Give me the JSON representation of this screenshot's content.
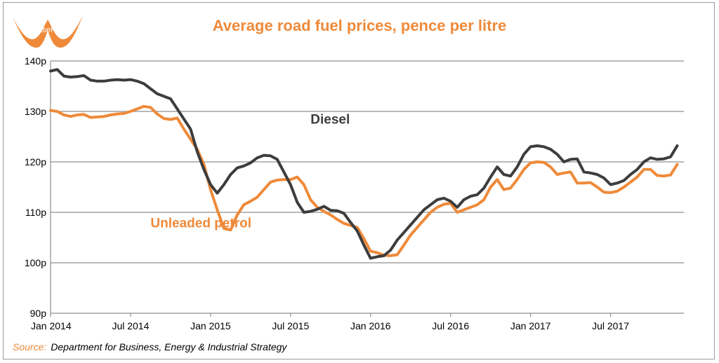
{
  "brand": {
    "logo_text": "LeasePlan",
    "color": "#ee8a3a"
  },
  "source_label": "Source:",
  "source_text": "Department for Business, Energy & Industrial Strategy",
  "chart_data": {
    "type": "line",
    "title": "Average road fuel prices, pence per litre",
    "xlabel": "",
    "ylabel": "",
    "y_unit_suffix": "p",
    "ylim": [
      90,
      140
    ],
    "yticks": [
      90,
      100,
      110,
      120,
      130,
      140
    ],
    "ytick_labels": [
      "90p",
      "100p",
      "110p",
      "120p",
      "130p",
      "140p"
    ],
    "xlim": [
      0,
      47.5
    ],
    "xticks": [
      0,
      6,
      12,
      18,
      24,
      30,
      36,
      42
    ],
    "xtick_labels": [
      "Jan 2014",
      "Jul 2014",
      "Jan 2015",
      "Jul 2015",
      "Jan 2016",
      "Jul 2016",
      "Jan 2017",
      "Jul 2017"
    ],
    "x_unit": "months since Jan 2014",
    "grid": "horizontal",
    "legend": "inline labels",
    "series": [
      {
        "name": "Diesel",
        "color": "#3d3d3d",
        "x": [
          0,
          0.5,
          1,
          1.5,
          2,
          2.5,
          3,
          3.5,
          4,
          4.5,
          5,
          5.5,
          6,
          6.5,
          7,
          7.5,
          8,
          8.5,
          9,
          9.5,
          10,
          10.5,
          11,
          11.5,
          12,
          12.5,
          13,
          13.5,
          14,
          14.5,
          15,
          15.5,
          16,
          16.5,
          17,
          17.5,
          18,
          18.5,
          19,
          19.5,
          20,
          20.5,
          21,
          21.5,
          22,
          22.5,
          23,
          23.5,
          24,
          24.5,
          25,
          25.5,
          26,
          26.5,
          27,
          27.5,
          28,
          28.5,
          29,
          29.5,
          30,
          30.5,
          31,
          31.5,
          32,
          32.5,
          33,
          33.5,
          34,
          34.5,
          35,
          35.5,
          36,
          36.5,
          37,
          37.5,
          38,
          38.5,
          39,
          39.5,
          40,
          40.5,
          41,
          41.5,
          42,
          42.5,
          43,
          43.5,
          44,
          44.5,
          45,
          45.5,
          46,
          46.5,
          47
        ],
        "values": [
          138.0,
          138.3,
          137.0,
          136.8,
          136.9,
          137.1,
          136.2,
          136.0,
          136.0,
          136.2,
          136.3,
          136.2,
          136.3,
          136.0,
          135.5,
          134.5,
          133.5,
          133.0,
          132.5,
          130.5,
          128.5,
          126.5,
          122.0,
          118.5,
          115.5,
          113.8,
          115.5,
          117.5,
          118.8,
          119.2,
          119.8,
          120.8,
          121.3,
          121.2,
          120.5,
          118.0,
          115.5,
          112.0,
          110.0,
          110.2,
          110.6,
          111.2,
          110.4,
          110.3,
          109.8,
          108.0,
          106.3,
          103.5,
          100.9,
          101.2,
          101.4,
          102.5,
          104.5,
          106.0,
          107.5,
          109.0,
          110.5,
          111.5,
          112.5,
          112.8,
          112.2,
          111.0,
          112.5,
          113.2,
          113.5,
          114.8,
          117.0,
          119.0,
          117.5,
          117.2,
          119.0,
          121.5,
          123.0,
          123.2,
          123.0,
          122.5,
          121.5,
          120.0,
          120.5,
          120.6,
          118.0,
          117.8,
          117.5,
          116.8,
          115.5,
          115.8,
          116.3,
          117.5,
          118.5,
          120.0,
          120.8,
          120.5,
          120.6,
          121.0,
          123.2
        ]
      },
      {
        "name": "Unleaded petrol",
        "color": "#ee8a3a",
        "x": [
          0,
          0.5,
          1,
          1.5,
          2,
          2.5,
          3,
          3.5,
          4,
          4.5,
          5,
          5.5,
          6,
          6.5,
          7,
          7.5,
          8,
          8.5,
          9,
          9.5,
          10,
          10.5,
          11,
          11.5,
          12,
          12.5,
          13,
          13.5,
          14,
          14.5,
          15,
          15.5,
          16,
          16.5,
          17,
          17.5,
          18,
          18.5,
          19,
          19.5,
          20,
          20.5,
          21,
          21.5,
          22,
          22.5,
          23,
          23.5,
          24,
          24.5,
          25,
          25.5,
          26,
          26.5,
          27,
          27.5,
          28,
          28.5,
          29,
          29.5,
          30,
          30.5,
          31,
          31.5,
          32,
          32.5,
          33,
          33.5,
          34,
          34.5,
          35,
          35.5,
          36,
          36.5,
          37,
          37.5,
          38,
          38.5,
          39,
          39.5,
          40,
          40.5,
          41,
          41.5,
          42,
          42.5,
          43,
          43.5,
          44,
          44.5,
          45,
          45.5,
          46,
          46.5,
          47
        ],
        "values": [
          130.2,
          130.0,
          129.3,
          129.0,
          129.3,
          129.4,
          128.8,
          128.9,
          129.0,
          129.3,
          129.5,
          129.6,
          130.0,
          130.5,
          131.0,
          130.8,
          129.5,
          128.6,
          128.4,
          128.7,
          126.5,
          124.5,
          122.5,
          119.5,
          114.5,
          110.5,
          106.8,
          106.5,
          109.5,
          111.5,
          112.2,
          113.0,
          114.5,
          116.0,
          116.4,
          116.5,
          116.5,
          117.0,
          115.5,
          112.5,
          111.0,
          110.2,
          109.5,
          108.6,
          107.8,
          107.4,
          107.0,
          104.8,
          102.3,
          102.0,
          101.5,
          101.4,
          101.6,
          103.5,
          105.5,
          107.0,
          108.5,
          110.0,
          111.0,
          111.6,
          111.8,
          110.0,
          110.5,
          111.0,
          111.5,
          112.5,
          115.0,
          116.5,
          114.5,
          114.8,
          116.5,
          118.5,
          119.8,
          120.0,
          119.9,
          119.0,
          117.5,
          117.8,
          118.0,
          115.8,
          115.8,
          115.9,
          115.0,
          114.0,
          113.9,
          114.2,
          115.0,
          116.0,
          117.0,
          118.5,
          118.5,
          117.3,
          117.2,
          117.4,
          119.5
        ]
      }
    ]
  }
}
